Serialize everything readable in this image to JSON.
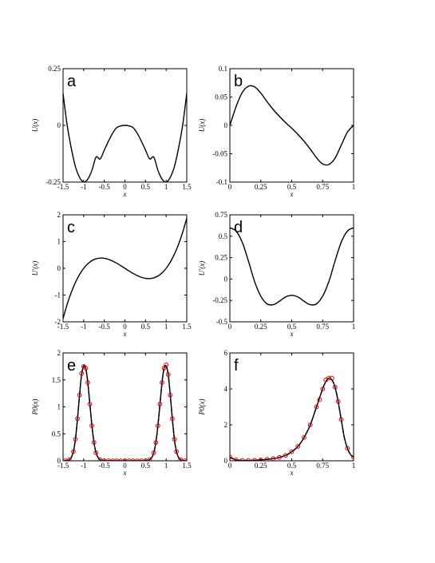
{
  "chart_data": [
    {
      "id": "a",
      "type": "line",
      "panel_label": "a",
      "xlabel": "x",
      "ylabel": "U(x)",
      "xlim": [
        -1.5,
        1.5
      ],
      "ylim": [
        -0.25,
        0.25
      ],
      "xticks": [
        -1.5,
        -1,
        -0.5,
        0,
        0.5,
        1,
        1.5
      ],
      "xtick_labels": [
        "-1.5",
        "-1",
        "-0.5",
        "0",
        "0.5",
        "1",
        "1.5"
      ],
      "yticks": [
        -0.25,
        0,
        0.25
      ],
      "ytick_labels": [
        "-0.25",
        "0",
        "0.25"
      ],
      "series": [
        {
          "x": [
            -1.5,
            -1.4,
            -1.3,
            -1.2,
            -1.1,
            -1.0,
            -0.9,
            -0.8,
            -0.7,
            -0.6,
            -0.5,
            -0.4,
            -0.3,
            -0.2,
            -0.1,
            0,
            0.1,
            0.2,
            0.3,
            0.4,
            0.5,
            0.6,
            0.7,
            0.8,
            0.9,
            1.0,
            1.1,
            1.2,
            1.3,
            1.4,
            1.5
          ],
          "y": [
            0.141,
            0.0004,
            -0.101,
            -0.182,
            -0.229,
            -0.25,
            -0.237,
            -0.198,
            -0.14,
            -0.148,
            -0.109,
            -0.07,
            -0.035,
            -0.01,
            -0.0025,
            0,
            -0.0025,
            -0.01,
            -0.035,
            -0.07,
            -0.109,
            -0.148,
            -0.14,
            -0.198,
            -0.237,
            -0.25,
            -0.229,
            -0.182,
            -0.101,
            0.0004,
            0.141
          ]
        }
      ]
    },
    {
      "id": "b",
      "type": "line",
      "panel_label": "b",
      "xlabel": "x",
      "ylabel": "U(x)",
      "xlim": [
        0,
        1
      ],
      "ylim": [
        -0.1,
        0.1
      ],
      "xticks": [
        0,
        0.25,
        0.5,
        0.75,
        1
      ],
      "xtick_labels": [
        "0",
        "0.25",
        "0.5",
        "0.75",
        "1"
      ],
      "yticks": [
        -0.1,
        -0.05,
        0,
        0.05,
        0.1
      ],
      "ytick_labels": [
        "-0.1",
        "-0.05",
        "0",
        "0.05",
        "0.1"
      ],
      "series": [
        {
          "x": [
            0,
            0.05,
            0.1,
            0.15,
            0.2,
            0.25,
            0.3,
            0.35,
            0.4,
            0.45,
            0.5,
            0.55,
            0.6,
            0.65,
            0.7,
            0.75,
            0.8,
            0.85,
            0.9,
            0.95,
            1.0
          ],
          "y": [
            0,
            0.033,
            0.058,
            0.069,
            0.068,
            0.057,
            0.042,
            0.028,
            0.016,
            0.005,
            -0.005,
            -0.016,
            -0.028,
            -0.042,
            -0.057,
            -0.068,
            -0.069,
            -0.058,
            -0.035,
            -0.012,
            0.0
          ]
        }
      ]
    },
    {
      "id": "c",
      "type": "line",
      "panel_label": "c",
      "xlabel": "x",
      "ylabel": "U'(x)",
      "xlim": [
        -1.5,
        1.5
      ],
      "ylim": [
        -2,
        2
      ],
      "xticks": [
        -1.5,
        -1,
        -0.5,
        0,
        0.5,
        1,
        1.5
      ],
      "xtick_labels": [
        "-1.5",
        "-1",
        "-0.5",
        "0",
        "0.5",
        "1",
        "1.5"
      ],
      "yticks": [
        -2,
        -1,
        0,
        1,
        2
      ],
      "ytick_labels": [
        "-2",
        "-1",
        "0",
        "1",
        "2"
      ],
      "series": [
        {
          "x": [
            -1.5,
            -1.4,
            -1.3,
            -1.2,
            -1.1,
            -1.0,
            -0.9,
            -0.8,
            -0.7,
            -0.6,
            -0.5,
            -0.4,
            -0.3,
            -0.2,
            -0.1,
            0,
            0.1,
            0.2,
            0.3,
            0.4,
            0.5,
            0.6,
            0.7,
            0.8,
            0.9,
            1.0,
            1.1,
            1.2,
            1.3,
            1.4,
            1.5
          ],
          "y": [
            -1.875,
            -1.344,
            -0.897,
            -0.528,
            -0.231,
            0,
            0.171,
            0.288,
            0.357,
            0.384,
            0.375,
            0.336,
            0.273,
            0.192,
            0.099,
            0,
            -0.099,
            -0.192,
            -0.273,
            -0.336,
            -0.375,
            -0.384,
            -0.357,
            -0.288,
            -0.171,
            0,
            0.231,
            0.528,
            0.897,
            1.344,
            1.875
          ]
        }
      ]
    },
    {
      "id": "d",
      "type": "line",
      "panel_label": "d",
      "xlabel": "x",
      "ylabel": "U'(x)",
      "xlim": [
        0,
        1
      ],
      "ylim": [
        -0.5,
        0.75
      ],
      "xticks": [
        0,
        0.25,
        0.5,
        0.75,
        1
      ],
      "xtick_labels": [
        "0",
        "0.25",
        "0.5",
        "0.75",
        "1"
      ],
      "yticks": [
        -0.5,
        -0.25,
        0,
        0.25,
        0.5,
        0.75
      ],
      "ytick_labels": [
        "-0.5",
        "-0.25",
        "0",
        "0.25",
        "0.5",
        "0.75"
      ],
      "series": [
        {
          "x": [
            0,
            0.05,
            0.1,
            0.15,
            0.2,
            0.25,
            0.3,
            0.35,
            0.4,
            0.45,
            0.5,
            0.55,
            0.6,
            0.65,
            0.7,
            0.75,
            0.8,
            0.85,
            0.9,
            0.95,
            1.0
          ],
          "y": [
            0.6,
            0.56,
            0.43,
            0.21,
            -0.03,
            -0.2,
            -0.29,
            -0.3,
            -0.26,
            -0.21,
            -0.19,
            -0.21,
            -0.26,
            -0.3,
            -0.29,
            -0.2,
            -0.03,
            0.21,
            0.43,
            0.56,
            0.6
          ]
        }
      ]
    },
    {
      "id": "e",
      "type": "line",
      "panel_label": "e",
      "xlabel": "x",
      "ylabel": "P0(x)",
      "xlim": [
        -1.5,
        1.5
      ],
      "ylim": [
        0,
        2
      ],
      "xticks": [
        -1.5,
        -1,
        -0.5,
        0,
        0.5,
        1,
        1.5
      ],
      "xtick_labels": [
        "-1.5",
        "-1",
        "-0.5",
        "0",
        "0.5",
        "1",
        "1.5"
      ],
      "yticks": [
        0,
        0.5,
        1,
        1.5,
        2
      ],
      "ytick_labels": [
        "0",
        "0.5",
        "1",
        "1.5",
        "2"
      ],
      "series": [
        {
          "style": "solid-dashed",
          "x": [
            -1.5,
            -1.45,
            -1.4,
            -1.35,
            -1.3,
            -1.25,
            -1.2,
            -1.15,
            -1.1,
            -1.05,
            -1.0,
            -0.95,
            -0.9,
            -0.85,
            -0.8,
            -0.75,
            -0.7,
            -0.65,
            -0.6,
            -0.55,
            -0.5,
            -0.4,
            -0.3,
            -0.2,
            -0.1,
            0,
            0.1,
            0.2,
            0.3,
            0.4,
            0.5,
            0.55,
            0.6,
            0.65,
            0.7,
            0.75,
            0.8,
            0.85,
            0.9,
            0.95,
            1.0,
            1.05,
            1.1,
            1.15,
            1.2,
            1.25,
            1.3,
            1.35,
            1.4,
            1.45,
            1.5
          ],
          "y": [
            0,
            0,
            0.005,
            0.02,
            0.06,
            0.17,
            0.4,
            0.78,
            1.22,
            1.6,
            1.76,
            1.72,
            1.45,
            1.05,
            0.65,
            0.34,
            0.15,
            0.06,
            0.02,
            0.007,
            0.002,
            0,
            0,
            0,
            0,
            0,
            0,
            0,
            0,
            0,
            0.002,
            0.007,
            0.02,
            0.06,
            0.15,
            0.34,
            0.65,
            1.05,
            1.45,
            1.72,
            1.76,
            1.6,
            1.22,
            0.78,
            0.4,
            0.17,
            0.06,
            0.02,
            0.005,
            0,
            0
          ]
        },
        {
          "style": "markers",
          "x": [
            -1.45,
            -1.35,
            -1.25,
            -1.2,
            -1.15,
            -1.1,
            -1.05,
            -1.0,
            -0.95,
            -0.9,
            -0.85,
            -0.8,
            -0.75,
            -0.7,
            -0.6,
            -0.5,
            -0.4,
            -0.3,
            -0.2,
            -0.1,
            0,
            0.1,
            0.2,
            0.3,
            0.4,
            0.5,
            0.6,
            0.7,
            0.75,
            0.8,
            0.85,
            0.9,
            0.95,
            1.0,
            1.05,
            1.1,
            1.15,
            1.2,
            1.25,
            1.35,
            1.45
          ],
          "y": [
            0,
            0.02,
            0.17,
            0.4,
            0.78,
            1.22,
            1.62,
            1.75,
            1.72,
            1.45,
            1.05,
            0.65,
            0.34,
            0.15,
            0.02,
            0.002,
            0,
            0,
            0,
            0,
            0,
            0,
            0,
            0,
            0,
            0.002,
            0.02,
            0.15,
            0.34,
            0.65,
            1.05,
            1.45,
            1.72,
            1.78,
            1.6,
            1.22,
            0.78,
            0.4,
            0.17,
            0.02,
            0
          ]
        }
      ]
    },
    {
      "id": "f",
      "type": "line",
      "panel_label": "f",
      "xlabel": "x",
      "ylabel": "P0(x)",
      "xlim": [
        0,
        1
      ],
      "ylim": [
        0,
        6
      ],
      "xticks": [
        0,
        0.25,
        0.5,
        0.75,
        1
      ],
      "xtick_labels": [
        "0",
        "0.25",
        "0.5",
        "0.75",
        "1"
      ],
      "yticks": [
        0,
        2,
        4,
        6
      ],
      "ytick_labels": [
        "0",
        "2",
        "4",
        "6"
      ],
      "series": [
        {
          "style": "solid-dashed",
          "x": [
            0,
            0.025,
            0.05,
            0.1,
            0.15,
            0.2,
            0.25,
            0.3,
            0.35,
            0.4,
            0.45,
            0.5,
            0.55,
            0.6,
            0.65,
            0.7,
            0.75,
            0.775,
            0.8,
            0.825,
            0.85,
            0.875,
            0.9,
            0.925,
            0.95,
            0.975,
            1.0
          ],
          "y": [
            0.2,
            0.12,
            0.05,
            0.02,
            0.02,
            0.03,
            0.05,
            0.08,
            0.12,
            0.19,
            0.3,
            0.5,
            0.8,
            1.3,
            2.0,
            3.0,
            4.0,
            4.4,
            4.6,
            4.5,
            4.1,
            3.3,
            2.3,
            1.3,
            0.7,
            0.35,
            0.2
          ]
        },
        {
          "style": "markers",
          "x": [
            0,
            0.05,
            0.1,
            0.15,
            0.2,
            0.25,
            0.3,
            0.35,
            0.4,
            0.45,
            0.5,
            0.55,
            0.6,
            0.65,
            0.7,
            0.725,
            0.75,
            0.775,
            0.8,
            0.825,
            0.85,
            0.875,
            0.9,
            0.95,
            1.0
          ],
          "y": [
            0.2,
            0.05,
            0.02,
            0.02,
            0.03,
            0.05,
            0.08,
            0.12,
            0.19,
            0.3,
            0.5,
            0.8,
            1.3,
            2.0,
            3.0,
            3.4,
            4.0,
            4.5,
            4.6,
            4.6,
            4.1,
            3.3,
            2.3,
            0.7,
            0.2
          ]
        }
      ]
    }
  ]
}
